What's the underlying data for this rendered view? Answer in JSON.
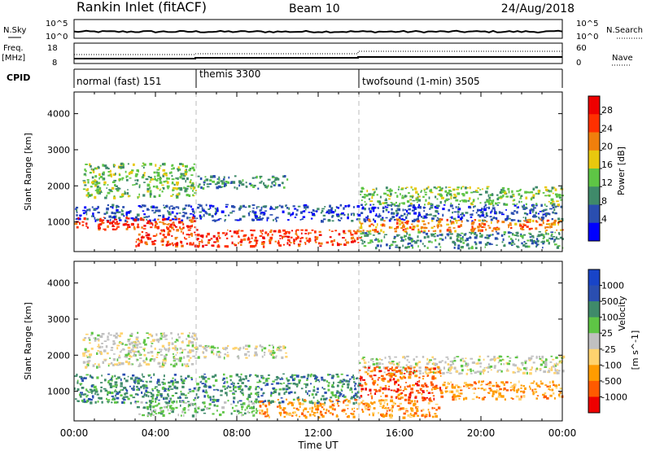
{
  "header": {
    "station": "Rankin Inlet (fitACF)",
    "beam": "Beam 10",
    "date": "24/Aug/2018"
  },
  "noise_panel": {
    "left_label": "N.Sky",
    "right_label": "N.Search",
    "ticks_left": [
      "10^5",
      "10^0"
    ],
    "ticks_right": [
      "10^5",
      "10^0"
    ]
  },
  "freq_panel": {
    "left_label_line1": "Freq.",
    "left_label_line2": "[MHz]",
    "right_label": "Nave",
    "ticks_left": [
      "18",
      "8"
    ],
    "ticks_right": [
      "60",
      "0"
    ]
  },
  "cpid": {
    "label": "CPID",
    "segments": [
      {
        "name": "normal (fast) 151",
        "start_hour": 0,
        "end_hour": 6
      },
      {
        "name": "themis 3300",
        "start_hour": 6,
        "end_hour": 14
      },
      {
        "name": "twofsound (1-min) 3505",
        "start_hour": 14,
        "end_hour": 24
      }
    ]
  },
  "chart_data": [
    {
      "type": "heatmap",
      "name": "power",
      "ylabel": "Slant Range [km]",
      "yticks": [
        "4000",
        "3000",
        "2000",
        "1000"
      ],
      "ylim": [
        180,
        4600
      ],
      "colorbar_title": "Power [dB]",
      "colorbar_ticks": [
        "28",
        "24",
        "20",
        "16",
        "12",
        "8",
        "4"
      ],
      "colors": [
        "#0000ff",
        "#2a4eb0",
        "#3f8a6a",
        "#5ec545",
        "#e8c80e",
        "#f07f0c",
        "#ff3000",
        "#ee0000"
      ],
      "regions": [
        {
          "t0": 0.4,
          "t1": 6.0,
          "r0": 1700,
          "r1": 2650,
          "level": 3
        },
        {
          "t0": 6.0,
          "t1": 10.5,
          "r0": 1950,
          "r1": 2300,
          "level": 2
        },
        {
          "t0": 0.0,
          "t1": 24.0,
          "r0": 1050,
          "r1": 1500,
          "level": 1
        },
        {
          "t0": 14.0,
          "t1": 24.0,
          "r0": 1500,
          "r1": 2000,
          "level": 3
        },
        {
          "t0": 0.0,
          "t1": 6.0,
          "r0": 800,
          "r1": 1150,
          "level": 6
        },
        {
          "t0": 3.0,
          "t1": 14.0,
          "r0": 350,
          "r1": 800,
          "level": 6
        },
        {
          "t0": 14.0,
          "t1": 24.0,
          "r0": 750,
          "r1": 1100,
          "level": 5
        },
        {
          "t0": 14.0,
          "t1": 24.0,
          "r0": 300,
          "r1": 750,
          "level": 2
        }
      ]
    },
    {
      "type": "heatmap",
      "name": "velocity",
      "ylabel": "Slant Range [km]",
      "yticks": [
        "4000",
        "3000",
        "2000",
        "1000"
      ],
      "ylim": [
        180,
        4600
      ],
      "colorbar_title": "Velocity",
      "colorbar_unit": "[m s^-1]",
      "colorbar_ticks": [
        "1000",
        "500",
        "100",
        "25",
        "-25",
        "-100",
        "-500",
        "-1000"
      ],
      "colors": [
        "#ee0000",
        "#ff5a00",
        "#ff9c00",
        "#ffd36e",
        "#c0c0c0",
        "#5ec545",
        "#3f8a6a",
        "#2a4eb0",
        "#1844c8"
      ],
      "regions": [
        {
          "t0": 0.4,
          "t1": 6.0,
          "r0": 1700,
          "r1": 2650,
          "level": 4
        },
        {
          "t0": 6.0,
          "t1": 10.5,
          "r0": 1950,
          "r1": 2300,
          "level": 4
        },
        {
          "t0": 14.0,
          "t1": 24.0,
          "r0": 1500,
          "r1": 2000,
          "level": 4
        },
        {
          "t0": 0.0,
          "t1": 14.0,
          "r0": 700,
          "r1": 1500,
          "level": 6
        },
        {
          "t0": 14.0,
          "t1": 18.0,
          "r0": 800,
          "r1": 1700,
          "level": 1
        },
        {
          "t0": 18.0,
          "t1": 24.0,
          "r0": 800,
          "r1": 1300,
          "level": 2
        },
        {
          "t0": 9.0,
          "t1": 18.0,
          "r0": 300,
          "r1": 800,
          "level": 2
        },
        {
          "t0": 3.0,
          "t1": 9.0,
          "r0": 350,
          "r1": 750,
          "level": 5
        }
      ]
    }
  ],
  "x_axis": {
    "ticks": [
      "00:00",
      "04:00",
      "08:00",
      "12:00",
      "16:00",
      "20:00",
      "00:00"
    ],
    "label": "Time UT",
    "range_hours": [
      0,
      24
    ]
  }
}
